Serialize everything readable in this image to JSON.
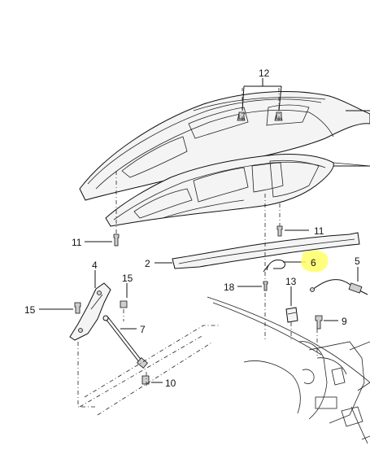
{
  "callouts": {
    "c12": "12",
    "c11a": "11",
    "c11b": "11",
    "c2": "2",
    "c6": "6",
    "c5": "5",
    "c4": "4",
    "c15a": "15",
    "c15b": "15",
    "c18": "18",
    "c13": "13",
    "c7": "7",
    "c9": "9",
    "c10": "10"
  },
  "colors": {
    "highlight": "#ffff66",
    "line": "#111111"
  }
}
